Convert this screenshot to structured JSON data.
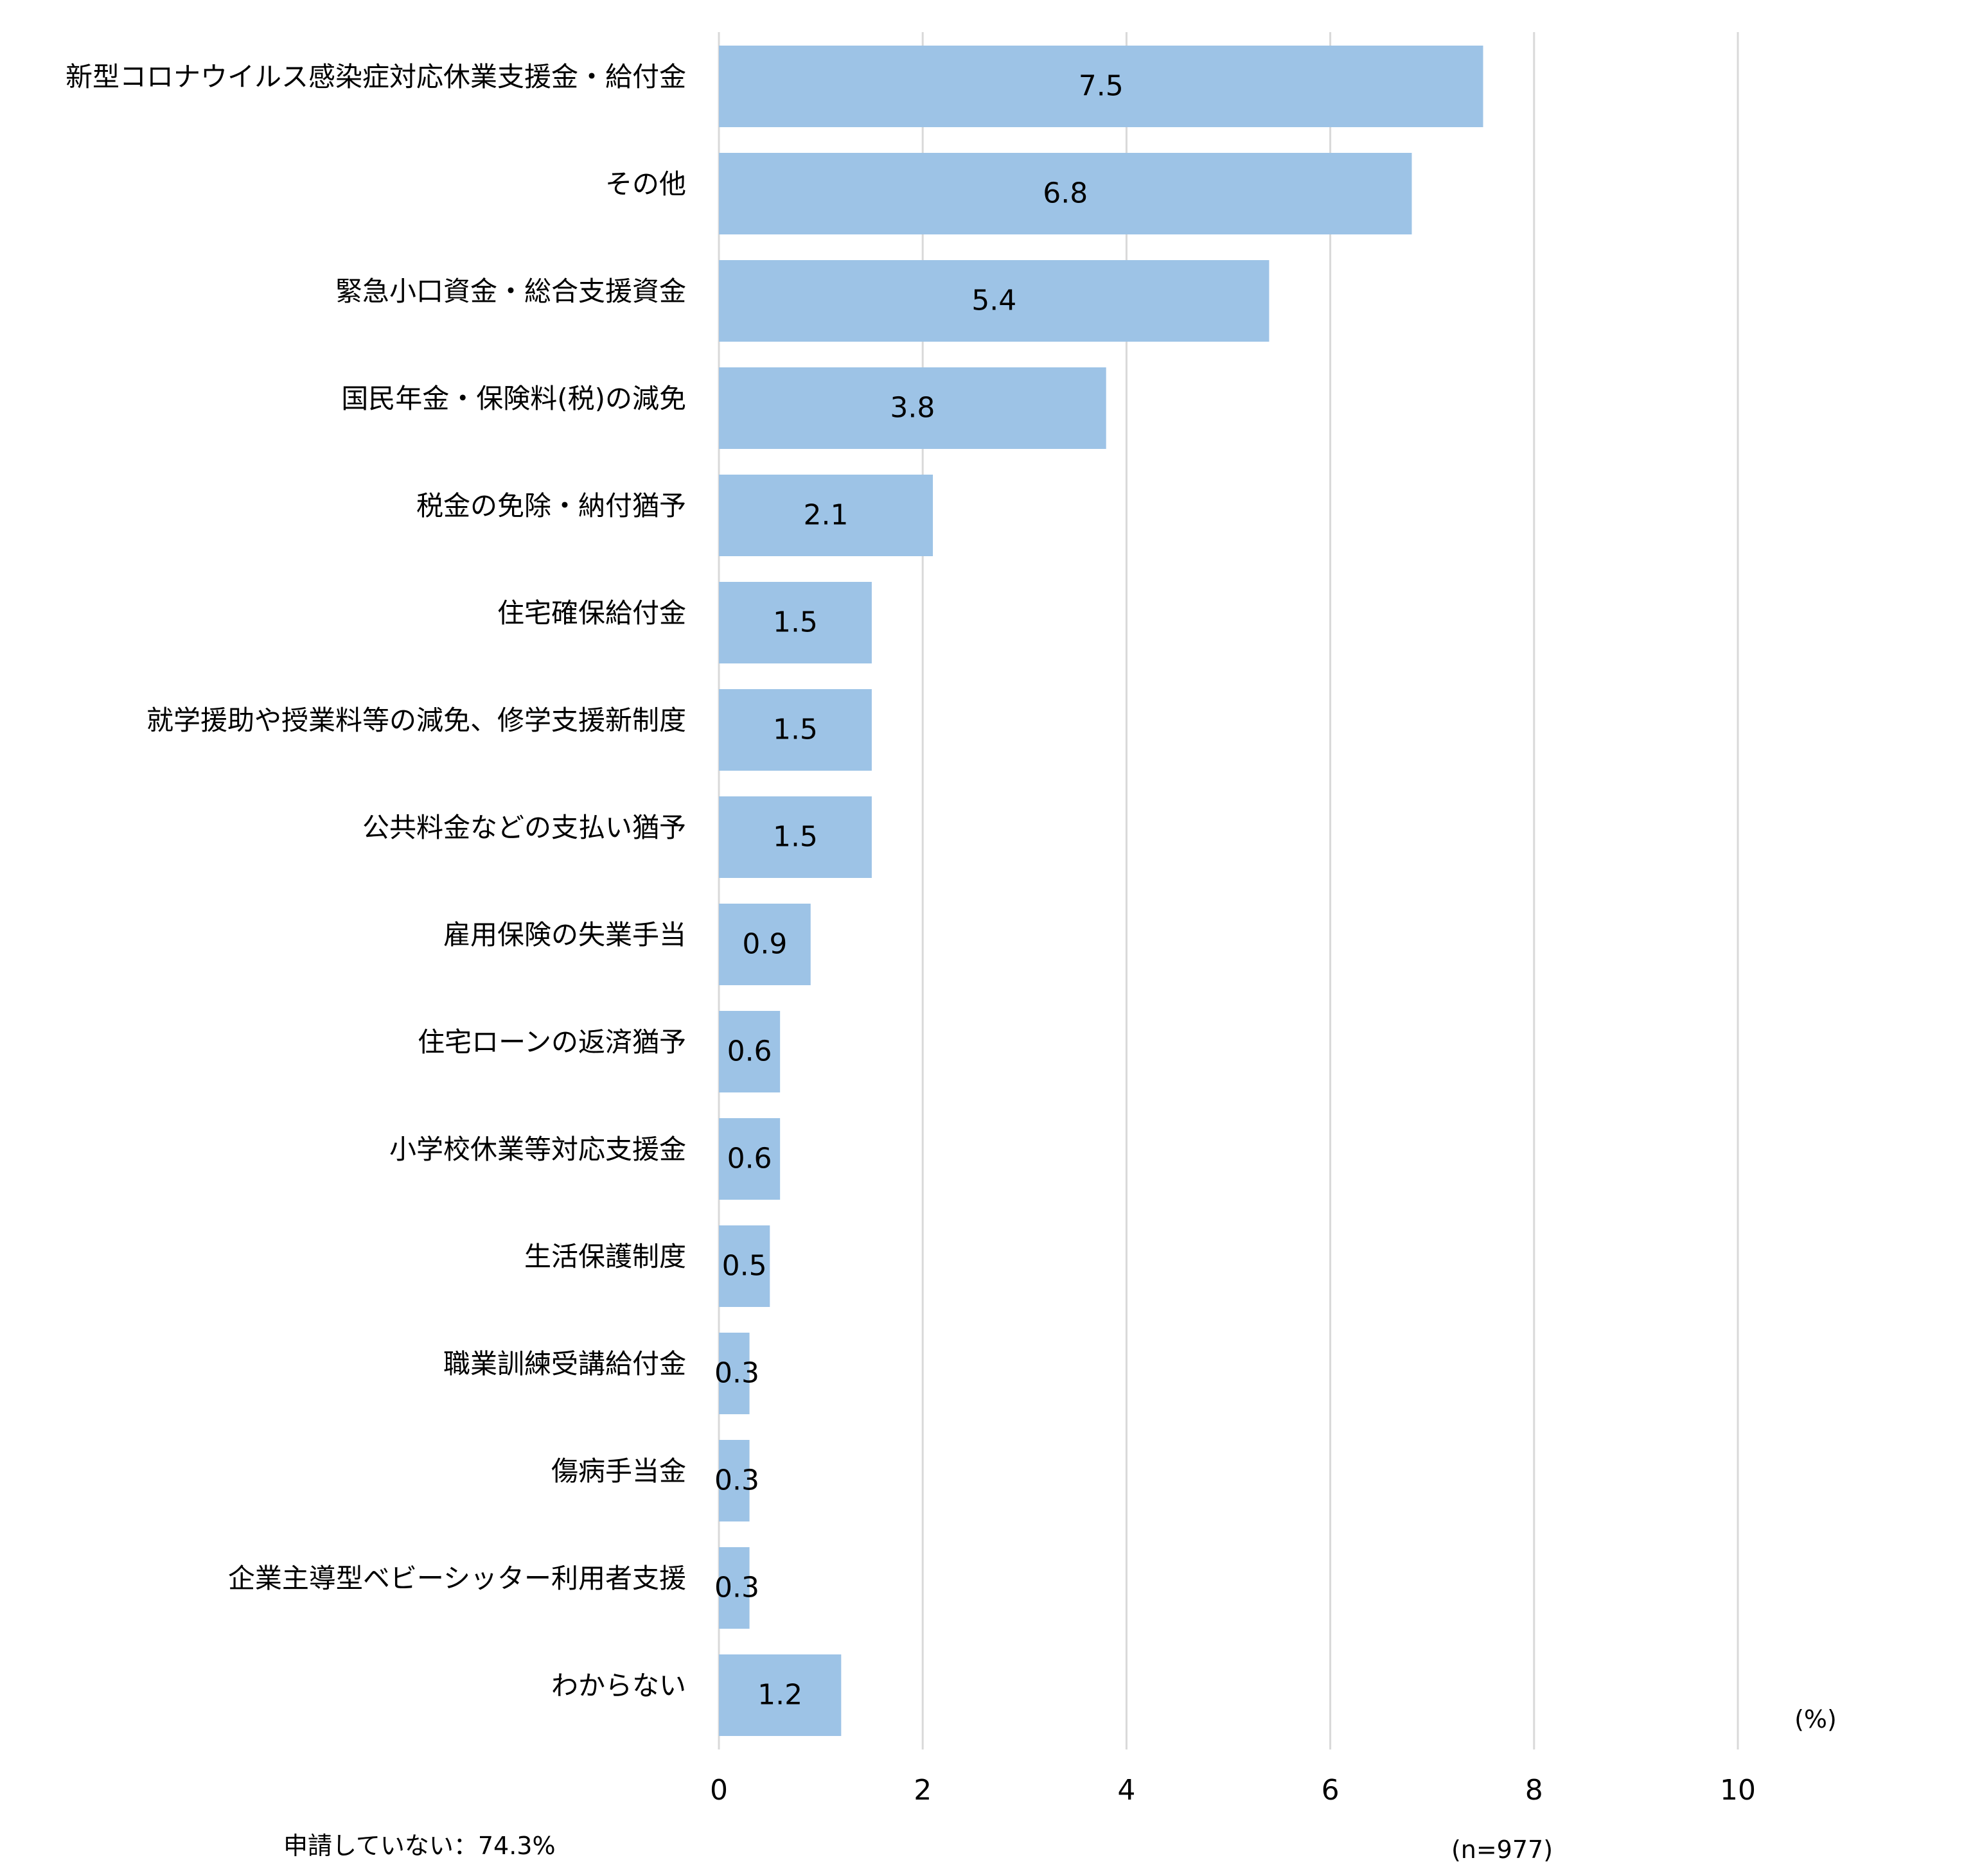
{
  "chart_data": {
    "type": "bar",
    "orientation": "horizontal",
    "categories": [
      "新型コロナウイルス感染症対応休業支援金・給付金",
      "その他",
      "緊急小口資金・総合支援資金",
      "国民年金・保険料(税)の減免",
      "税金の免除・納付猶予",
      "住宅確保給付金",
      "就学援助や授業料等の減免、修学支援新制度",
      "公共料金などの支払い猶予",
      "雇用保険の失業手当",
      "住宅ローンの返済猶予",
      "小学校休業等対応支援金",
      "生活保護制度",
      "職業訓練受講給付金",
      "傷病手当金",
      "企業主導型ベビーシッター利用者支援",
      "わからない"
    ],
    "values": [
      7.5,
      6.8,
      5.4,
      3.8,
      2.1,
      1.5,
      1.5,
      1.5,
      0.9,
      0.6,
      0.6,
      0.5,
      0.3,
      0.3,
      0.3,
      1.2
    ],
    "data_labels": [
      "7.5",
      "6.8",
      "5.4",
      "3.8",
      "2.1",
      "1.5",
      "1.5",
      "1.5",
      "0.9",
      "0.6",
      "0.6",
      "0.5",
      "0.3",
      "0.3",
      "0.3",
      "1.2"
    ],
    "xlim": [
      0,
      10
    ],
    "xticks": [
      "0",
      "2",
      "4",
      "6",
      "8",
      "10"
    ],
    "unit_label": "(%)",
    "sample_note": "(n=977)",
    "footnote": "申請していない：74.3%",
    "grid": "vertical",
    "bar_color": "#9DC3E6",
    "grid_color": "#D9D9D9"
  }
}
